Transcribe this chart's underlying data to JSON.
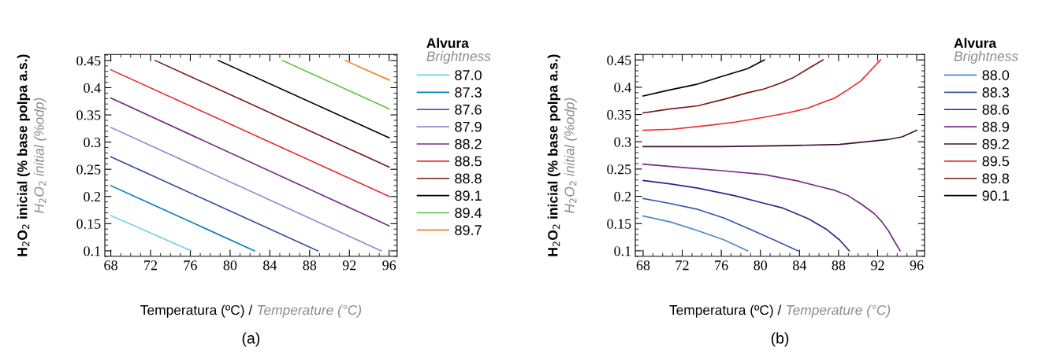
{
  "chart_data": [
    {
      "type": "line",
      "xlabel": "Temperatura (ºC) / Temperature (°C)",
      "ylabel": "H$_{2}$O$_{2}$ inicial (% base polpa a.s.)\nH$_{2}$O$_{2}$ initial (%odp)",
      "legend_title": "Alvura\nBrightness",
      "legend": "right",
      "grid": false,
      "marker": "none",
      "line_style": "solid",
      "xlim": [
        67.4,
        96.8
      ],
      "ylim": [
        0.09,
        0.461
      ],
      "xticks": [
        68,
        72,
        76,
        80,
        84,
        88,
        92,
        96
      ],
      "yticks": [
        0.1,
        0.15,
        0.2,
        0.25,
        0.3,
        0.35,
        0.4,
        0.45
      ],
      "annotations": [
        "(a)"
      ],
      "series": [
        {
          "name": "87.0",
          "color": "#6dd0df",
          "x": [
            68,
            76.1
          ],
          "values": [
            0.165,
            0.1
          ]
        },
        {
          "name": "87.3",
          "color": "#0a7ec2",
          "x": [
            68,
            82.46
          ],
          "values": [
            0.22,
            0.1
          ]
        },
        {
          "name": "87.6",
          "color": "#3a4fa0",
          "x": [
            68,
            88.83
          ],
          "values": [
            0.273,
            0.1
          ]
        },
        {
          "name": "87.9",
          "color": "#8a8fd0",
          "x": [
            68,
            95.2
          ],
          "values": [
            0.327,
            0.1
          ]
        },
        {
          "name": "88.2",
          "color": "#7a2a8a",
          "x": [
            68,
            96
          ],
          "values": [
            0.381,
            0.146
          ]
        },
        {
          "name": "88.5",
          "color": "#f02a2a",
          "x": [
            68,
            96
          ],
          "values": [
            0.433,
            0.2
          ]
        },
        {
          "name": "88.8",
          "color": "#7a1a1a",
          "x": [
            72.47,
            96
          ],
          "values": [
            0.45,
            0.254
          ]
        },
        {
          "name": "89.1",
          "color": "#000000",
          "x": [
            78.83,
            96
          ],
          "values": [
            0.45,
            0.308
          ]
        },
        {
          "name": "89.4",
          "color": "#5ec23a",
          "x": [
            85.28,
            96
          ],
          "values": [
            0.45,
            0.361
          ]
        },
        {
          "name": "89.7",
          "color": "#f58220",
          "x": [
            91.59,
            96
          ],
          "values": [
            0.45,
            0.414
          ]
        }
      ]
    },
    {
      "type": "line",
      "xlabel": "Temperatura (ºC) / Temperature (°C)",
      "ylabel": "H$_{2}$O$_{2}$ inicial (% base polpa a.s.)\nH$_{2}$O$_{2}$ initial (%odp)",
      "legend_title": "Alvura\nBrightness",
      "legend": "right",
      "grid": false,
      "marker": "none",
      "line_style": "solid",
      "xlim": [
        67.2,
        96.8
      ],
      "ylim": [
        0.09,
        0.46
      ],
      "xticks": [
        68,
        72,
        76,
        80,
        84,
        88,
        92,
        96
      ],
      "yticks": [
        0.1,
        0.15,
        0.2,
        0.25,
        0.3,
        0.35,
        0.4,
        0.45
      ],
      "annotations": [
        "(b)"
      ],
      "series": [
        {
          "name": "88.0",
          "color": "#4a88d0",
          "x": [
            68,
            70.8,
            73.6,
            76.3,
            78.7
          ],
          "values": [
            0.164,
            0.153,
            0.137,
            0.12,
            0.1
          ]
        },
        {
          "name": "88.3",
          "color": "#3a55b0",
          "x": [
            68,
            70.7,
            73.6,
            76.3,
            79.0,
            81.4,
            83.85
          ],
          "values": [
            0.196,
            0.187,
            0.176,
            0.16,
            0.139,
            0.12,
            0.1
          ]
        },
        {
          "name": "88.6",
          "color": "#252e88",
          "x": [
            68,
            70.7,
            73.6,
            77.4,
            80.4,
            82.2,
            84.9,
            86.8,
            88.1,
            89.1
          ],
          "values": [
            0.229,
            0.223,
            0.215,
            0.201,
            0.187,
            0.179,
            0.159,
            0.139,
            0.12,
            0.1
          ]
        },
        {
          "name": "88.9",
          "color": "#7a2a8a",
          "x": [
            68,
            72.0,
            76.1,
            80.4,
            83.85,
            86.0,
            87.6,
            89.0,
            90.3,
            91.6,
            92.4,
            93.1,
            93.8,
            94.3
          ],
          "values": [
            0.259,
            0.253,
            0.247,
            0.24,
            0.228,
            0.218,
            0.211,
            0.201,
            0.186,
            0.169,
            0.154,
            0.137,
            0.115,
            0.1
          ]
        },
        {
          "name": "89.2",
          "color": "#3a1038",
          "x": [
            68,
            76.1,
            82.8,
            88.1,
            90.3,
            93.0,
            94.5,
            96
          ],
          "values": [
            0.291,
            0.291,
            0.293,
            0.295,
            0.299,
            0.304,
            0.309,
            0.321
          ]
        },
        {
          "name": "89.5",
          "color": "#f02a2a",
          "x": [
            68,
            71.0,
            74.7,
            77.4,
            80.4,
            82.8,
            84.9,
            86.8,
            87.6,
            89.0,
            90.3,
            91.6,
            92.3
          ],
          "values": [
            0.321,
            0.323,
            0.33,
            0.336,
            0.345,
            0.353,
            0.362,
            0.375,
            0.38,
            0.396,
            0.412,
            0.437,
            0.45
          ]
        },
        {
          "name": "89.8",
          "color": "#7a1a1a",
          "x": [
            68,
            70.7,
            73.6,
            76.3,
            78.7,
            80.4,
            82.0,
            83.3,
            84.7,
            86.4
          ],
          "values": [
            0.353,
            0.36,
            0.366,
            0.378,
            0.39,
            0.397,
            0.407,
            0.417,
            0.432,
            0.45
          ]
        },
        {
          "name": "90.1",
          "color": "#000000",
          "x": [
            68,
            70.7,
            73.4,
            76.1,
            78.7,
            80.4
          ],
          "values": [
            0.384,
            0.395,
            0.405,
            0.42,
            0.434,
            0.45
          ]
        }
      ]
    }
  ]
}
